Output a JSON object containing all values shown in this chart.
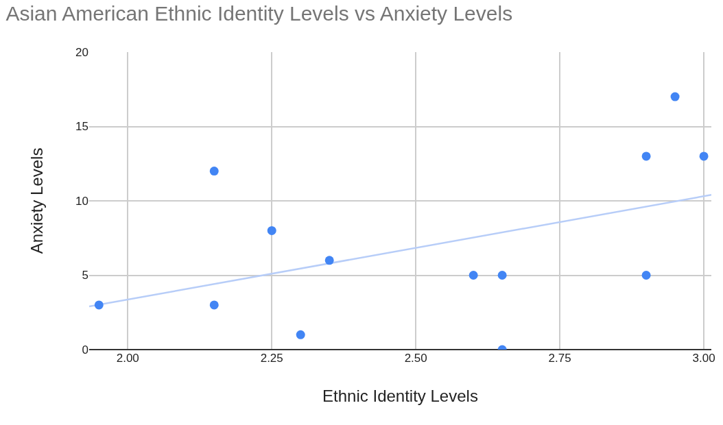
{
  "chart_data": {
    "type": "scatter",
    "title": "Asian American Ethnic Identity Levels vs Anxiety Levels",
    "xlabel": "Ethnic Identity Levels",
    "ylabel": "Anxiety Levels",
    "xlim": [
      1.933,
      3.013
    ],
    "xticks": [
      {
        "value": 2,
        "label": "2.00"
      },
      {
        "value": 2.25,
        "label": "2.25"
      },
      {
        "value": 2.5,
        "label": "2.50"
      },
      {
        "value": 2.75,
        "label": "2.75"
      },
      {
        "value": 3,
        "label": "3.00"
      }
    ],
    "ylim": [
      0,
      20
    ],
    "yticks": [
      0,
      5,
      10,
      15,
      20
    ],
    "grid": true,
    "series": [
      {
        "marker": "circle",
        "color": "#4285f4",
        "x": [
          1.95,
          2.15,
          2.15,
          2.25,
          2.3,
          2.35,
          2.6,
          2.65,
          2.65,
          2.9,
          2.9,
          2.95,
          3.0
        ],
        "values": [
          3,
          12,
          3,
          8,
          1,
          6,
          5,
          5,
          0,
          13,
          5,
          17,
          13
        ]
      },
      {
        "type": "line",
        "color": "#b7cdf8",
        "x": [
          1.933,
          3.013
        ],
        "values": [
          2.9,
          10.4
        ]
      }
    ]
  }
}
